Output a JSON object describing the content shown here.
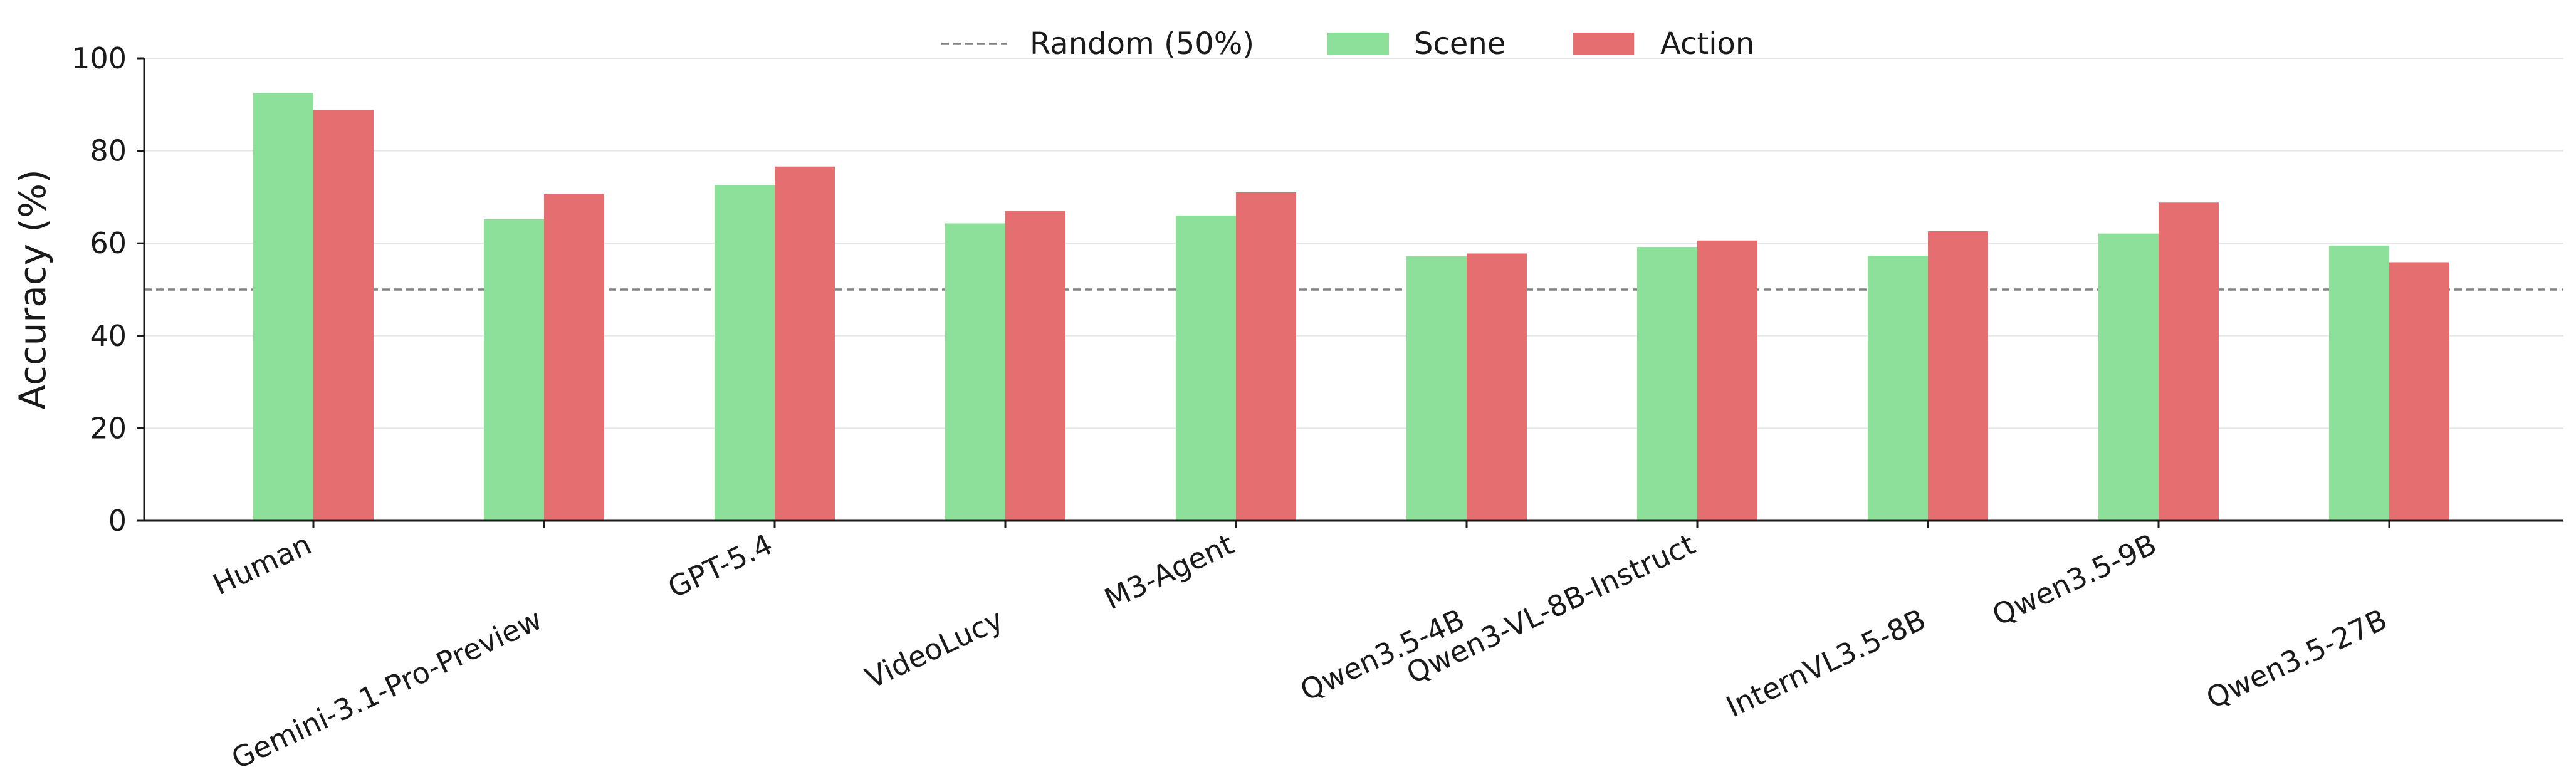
{
  "chart_data": {
    "type": "bar",
    "ylabel": "Accuracy (%)",
    "ylim": [
      0,
      100
    ],
    "yticks": [
      0,
      20,
      40,
      60,
      80,
      100
    ],
    "grid": "horizontal",
    "legend_position": "top-center",
    "categories": [
      "Human",
      "Gemini-3.1-Pro-Preview",
      "GPT-5.4",
      "VideoLucy",
      "M3-Agent",
      "Qwen3.5-4B",
      "Qwen3-VL-8B-Instruct",
      "InternVL3.5-8B",
      "Qwen3.5-9B",
      "Qwen3.5-27B"
    ],
    "series": [
      {
        "name": "Scene",
        "color": "#8ce09a",
        "values": [
          92.5,
          65.2,
          72.6,
          64.3,
          66.0,
          57.2,
          59.2,
          57.3,
          62.1,
          59.5
        ]
      },
      {
        "name": "Action",
        "color": "#e46e70",
        "values": [
          88.8,
          70.6,
          76.6,
          67.0,
          71.0,
          57.8,
          60.6,
          62.6,
          68.8,
          55.9
        ]
      }
    ],
    "reference_line": {
      "name": "Random (50%)",
      "value": 50,
      "color": "#808080",
      "style": "dashed"
    }
  }
}
